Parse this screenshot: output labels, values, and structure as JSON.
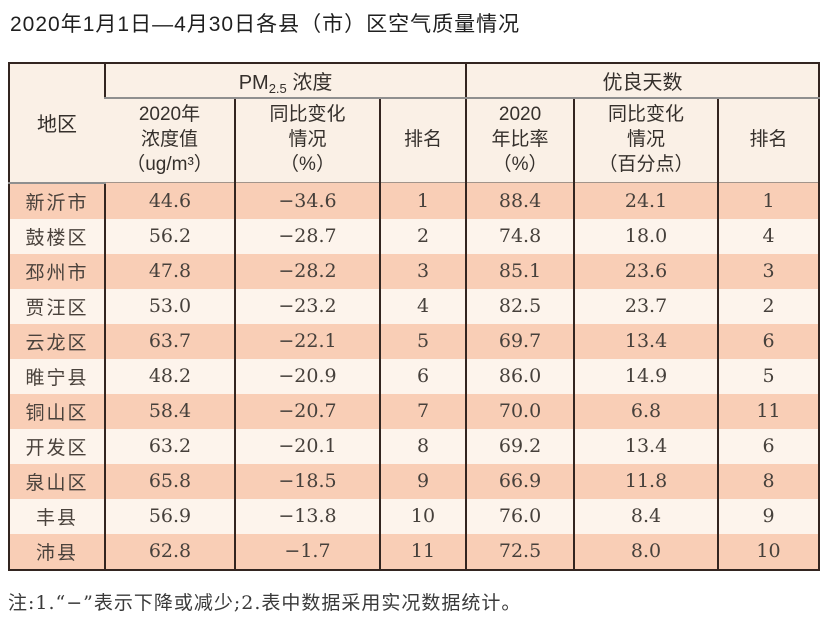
{
  "title": "2020年1月1日—4月30日各县（市）区空气质量情况",
  "note": "注:1.“−”表示下降或减少;2.表中数据采用实况数据统计。",
  "table": {
    "region_header": "地区",
    "pm_group": {
      "prefix": "PM",
      "sub": "2.5",
      "suffix": " 浓度"
    },
    "good_group": "优良天数",
    "sub_headers": {
      "pm_value": "2020年\n浓度值\n（ug/m³）",
      "pm_change": "同比变化\n情况\n（%）",
      "pm_rank": "排名",
      "good_ratio": "2020\n年比率\n（%）",
      "good_change": "同比变化\n情况\n（百分点）",
      "good_rank": "排名"
    }
  },
  "colors": {
    "row_salmon": "#f9ceb6",
    "row_light": "#fdf4ec",
    "header_bg": "#faf0e6",
    "border_dark": "#332520",
    "divider_gray": "#8f8f8f"
  },
  "chart_data": {
    "type": "table",
    "title": "2020年1月1日—4月30日各县（市）区空气质量情况",
    "column_groups": [
      "PM2.5浓度",
      "优良天数"
    ],
    "columns": [
      "地区",
      "2020年浓度值（ug/m³）",
      "同比变化情况（%）",
      "排名",
      "2020年比率（%）",
      "同比变化情况（百分点）",
      "排名"
    ],
    "rows": [
      {
        "region": "新沂市",
        "pm_value": "44.6",
        "pm_change": "−34.6",
        "pm_rank": "1",
        "good_ratio": "88.4",
        "good_change": "24.1",
        "good_rank": "1"
      },
      {
        "region": "鼓楼区",
        "pm_value": "56.2",
        "pm_change": "−28.7",
        "pm_rank": "2",
        "good_ratio": "74.8",
        "good_change": "18.0",
        "good_rank": "4"
      },
      {
        "region": "邳州市",
        "pm_value": "47.8",
        "pm_change": "−28.2",
        "pm_rank": "3",
        "good_ratio": "85.1",
        "good_change": "23.6",
        "good_rank": "3"
      },
      {
        "region": "贾汪区",
        "pm_value": "53.0",
        "pm_change": "−23.2",
        "pm_rank": "4",
        "good_ratio": "82.5",
        "good_change": "23.7",
        "good_rank": "2"
      },
      {
        "region": "云龙区",
        "pm_value": "63.7",
        "pm_change": "−22.1",
        "pm_rank": "5",
        "good_ratio": "69.7",
        "good_change": "13.4",
        "good_rank": "6"
      },
      {
        "region": "睢宁县",
        "pm_value": "48.2",
        "pm_change": "−20.9",
        "pm_rank": "6",
        "good_ratio": "86.0",
        "good_change": "14.9",
        "good_rank": "5"
      },
      {
        "region": "铜山区",
        "pm_value": "58.4",
        "pm_change": "−20.7",
        "pm_rank": "7",
        "good_ratio": "70.0",
        "good_change": "6.8",
        "good_rank": "11"
      },
      {
        "region": "开发区",
        "pm_value": "63.2",
        "pm_change": "−20.1",
        "pm_rank": "8",
        "good_ratio": "69.2",
        "good_change": "13.4",
        "good_rank": "6"
      },
      {
        "region": "泉山区",
        "pm_value": "65.8",
        "pm_change": "−18.5",
        "pm_rank": "9",
        "good_ratio": "66.9",
        "good_change": "11.8",
        "good_rank": "8"
      },
      {
        "region": "丰县",
        "pm_value": "56.9",
        "pm_change": "−13.8",
        "pm_rank": "10",
        "good_ratio": "76.0",
        "good_change": "8.4",
        "good_rank": "9"
      },
      {
        "region": "沛县",
        "pm_value": "62.8",
        "pm_change": "−1.7",
        "pm_rank": "11",
        "good_ratio": "72.5",
        "good_change": "8.0",
        "good_rank": "10"
      }
    ]
  }
}
